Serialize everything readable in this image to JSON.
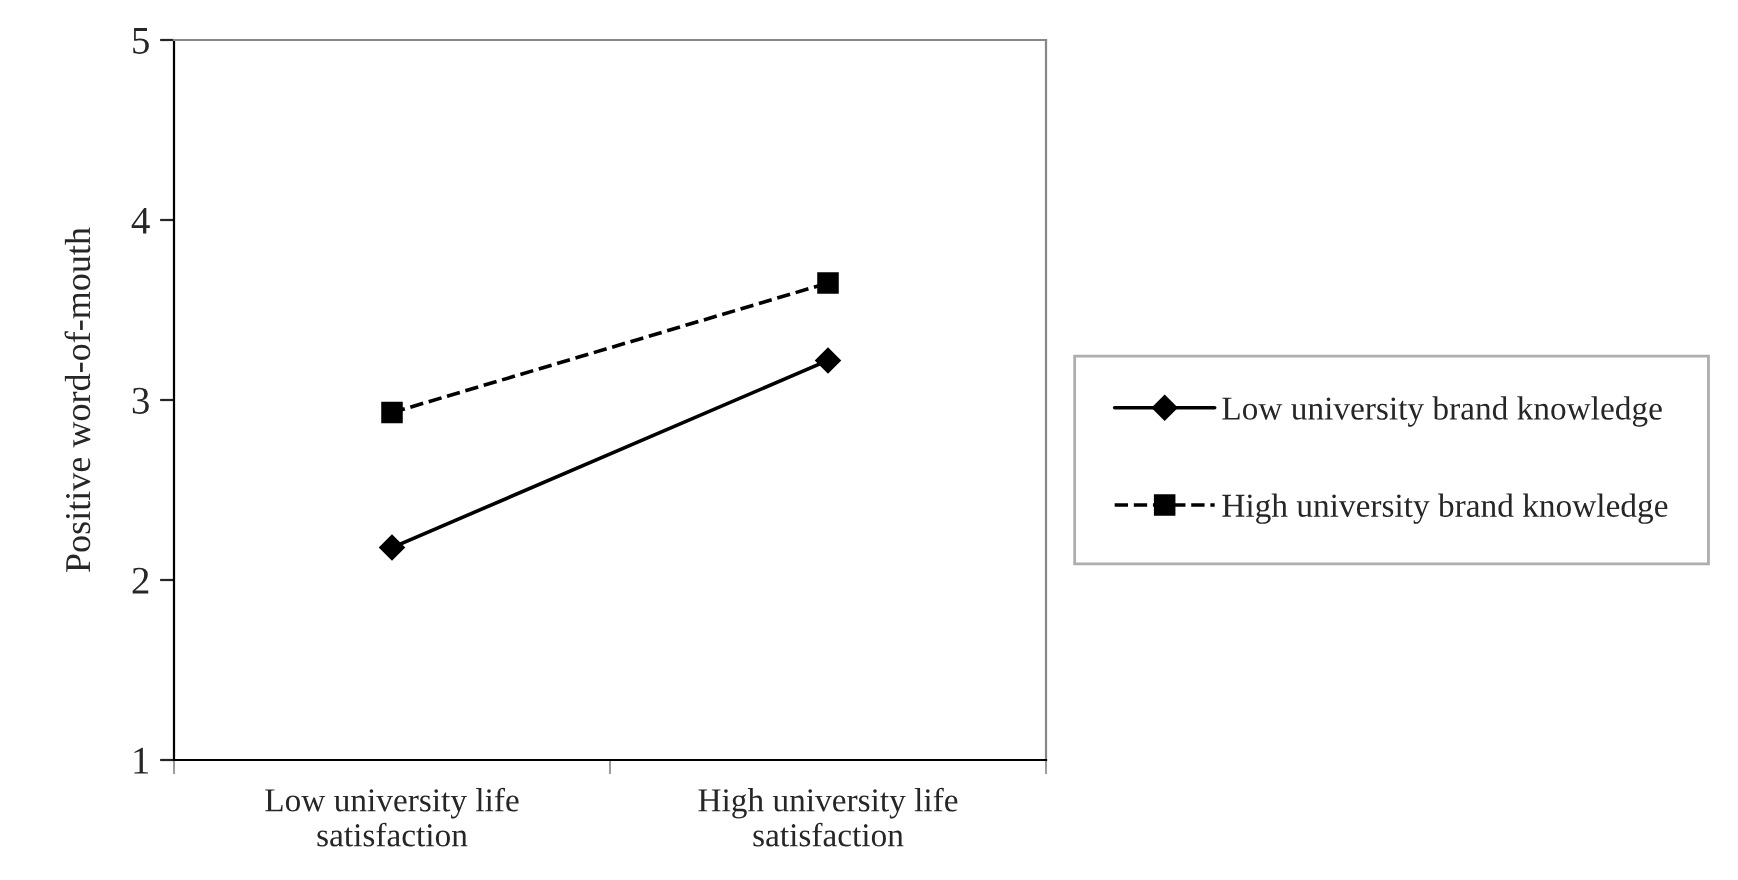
{
  "chart_data": {
    "type": "line",
    "ylabel": "Positive word-of-mouth",
    "categories": [
      "Low university life\nsatisfaction",
      "High university life\nsatisfaction"
    ],
    "series": [
      {
        "name": "Low university brand knowledge",
        "color": "#000000",
        "values": [
          2.18,
          3.22
        ],
        "marker": "diamond",
        "line_style": "solid"
      },
      {
        "name": "High university brand knowledge",
        "color": "#000000",
        "values": [
          2.93,
          3.65
        ],
        "marker": "square",
        "line_style": "dashed"
      }
    ],
    "ylim": [
      1,
      5
    ],
    "yticks": [
      1,
      2,
      3,
      4,
      5
    ],
    "grid": false,
    "legend": "right"
  }
}
